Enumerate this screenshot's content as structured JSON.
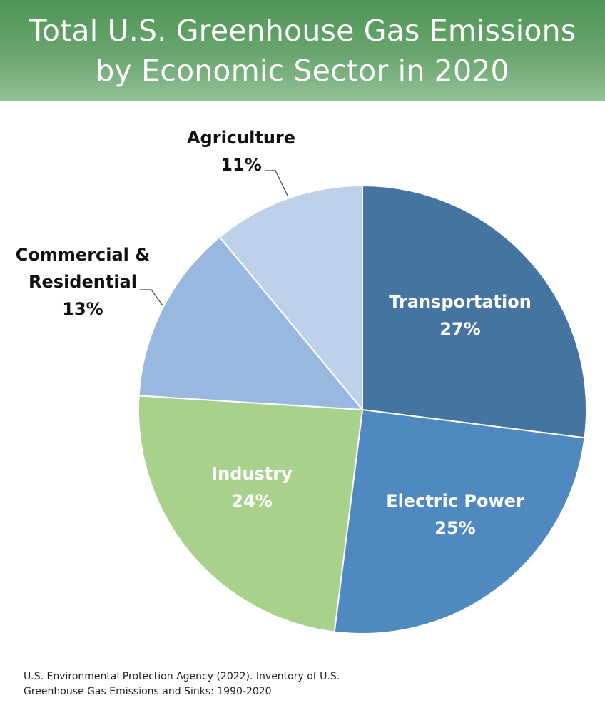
{
  "header": {
    "title_line1": "Total U.S. Greenhouse Gas Emissions",
    "title_line2": "by Economic Sector in 2020"
  },
  "source": {
    "line1": "U.S. Environmental Protection Agency (2022). Inventory of U.S.",
    "line2": "Greenhouse Gas Emissions and Sinks: 1990-2020"
  },
  "chart_data": {
    "type": "pie",
    "title": "Total U.S. Greenhouse Gas Emissions by Economic Sector in 2020",
    "slices": [
      {
        "label_lines": [
          "Transportation"
        ],
        "percent_label": "27%",
        "value": 27,
        "color": "#44749f",
        "label_placement": "inside"
      },
      {
        "label_lines": [
          "Electric Power"
        ],
        "percent_label": "25%",
        "value": 25,
        "color": "#5089bf",
        "label_placement": "inside"
      },
      {
        "label_lines": [
          "Industry"
        ],
        "percent_label": "24%",
        "value": 24,
        "color": "#a8d18c",
        "label_placement": "inside"
      },
      {
        "label_lines": [
          "Commercial &",
          "Residential"
        ],
        "percent_label": "13%",
        "value": 13,
        "color": "#98b8df",
        "label_placement": "outside"
      },
      {
        "label_lines": [
          "Agriculture"
        ],
        "percent_label": "11%",
        "value": 11,
        "color": "#bdd0ea",
        "label_placement": "outside"
      }
    ],
    "start_angle": "12 o'clock",
    "direction": "clockwise",
    "legend": "none"
  }
}
